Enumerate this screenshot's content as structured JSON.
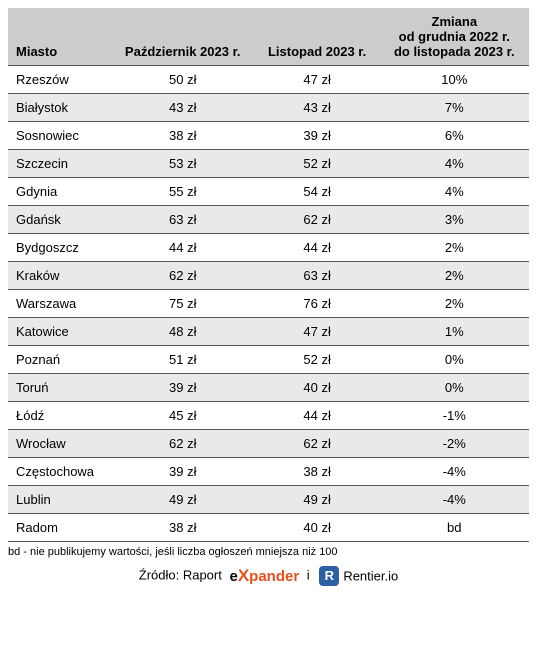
{
  "table": {
    "columns": [
      "Miasto",
      "Październik 2023 r.",
      "Listopad 2023 r.",
      "Zmiana\nod grudnia 2022 r.\ndo listopada 2023 r."
    ],
    "rows": [
      [
        "Rzeszów",
        "50 zł",
        "47 zł",
        "10%"
      ],
      [
        "Białystok",
        "43 zł",
        "43 zł",
        "7%"
      ],
      [
        "Sosnowiec",
        "38 zł",
        "39 zł",
        "6%"
      ],
      [
        "Szczecin",
        "53 zł",
        "52 zł",
        "4%"
      ],
      [
        "Gdynia",
        "55 zł",
        "54 zł",
        "4%"
      ],
      [
        "Gdańsk",
        "63 zł",
        "62 zł",
        "3%"
      ],
      [
        "Bydgoszcz",
        "44 zł",
        "44 zł",
        "2%"
      ],
      [
        "Kraków",
        "62 zł",
        "63 zł",
        "2%"
      ],
      [
        "Warszawa",
        "75 zł",
        "76 zł",
        "2%"
      ],
      [
        "Katowice",
        "48 zł",
        "47 zł",
        "1%"
      ],
      [
        "Poznań",
        "51 zł",
        "52 zł",
        "0%"
      ],
      [
        "Toruń",
        "39 zł",
        "40 zł",
        "0%"
      ],
      [
        "Łódź",
        "45 zł",
        "44 zł",
        "-1%"
      ],
      [
        "Wrocław",
        "62 zł",
        "62 zł",
        "-2%"
      ],
      [
        "Częstochowa",
        "39 zł",
        "38 zł",
        "-4%"
      ],
      [
        "Lublin",
        "49 zł",
        "49 zł",
        "-4%"
      ],
      [
        "Radom",
        "38 zł",
        "40 zł",
        "bd"
      ]
    ],
    "header_bg": "#cccccc",
    "row_alt_bg": "#e9e9e9",
    "border_color": "#555555",
    "col_align": [
      "left",
      "center",
      "center",
      "center"
    ]
  },
  "footnote": "bd - nie publikujemy wartości, jeśli liczba ogłoszeń mniejsza niż 100",
  "source": {
    "prefix": "Źródło: Raport",
    "expander_part1": "e",
    "expander_x": "X",
    "expander_part2": "pander",
    "sep": "i",
    "rentier_badge": "R",
    "rentier_text": "Rentier.io"
  }
}
